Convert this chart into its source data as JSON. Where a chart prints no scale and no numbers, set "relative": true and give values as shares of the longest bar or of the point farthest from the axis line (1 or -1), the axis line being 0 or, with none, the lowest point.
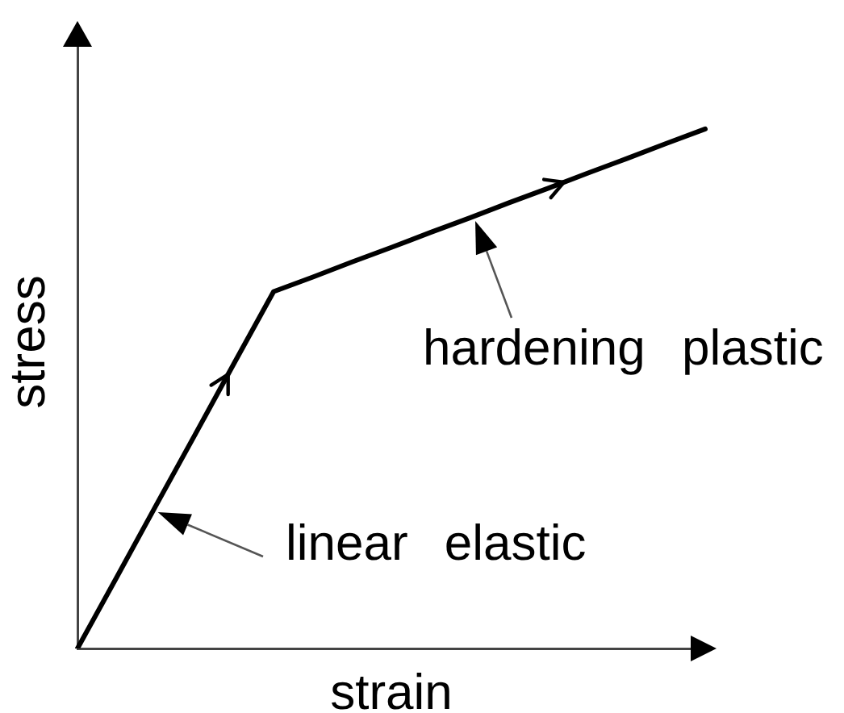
{
  "chart_data": {
    "type": "line",
    "xlabel": "strain",
    "ylabel": "stress",
    "relative": true,
    "categories": [
      null,
      null,
      null,
      null,
      null,
      null,
      null,
      null,
      null,
      null,
      null,
      null,
      null,
      null,
      null,
      null,
      null
    ],
    "series": [
      {
        "color": "#000000",
        "values": [
          0,
          0.137,
          0.275,
          0.412,
          0.55,
          0.687,
          0.715,
          0.744,
          0.772,
          0.801,
          0.829,
          0.858,
          0.886,
          0.915,
          0.943,
          0.972,
          1
        ]
      }
    ],
    "annotations": [
      "linear elastic",
      "hardening plastic"
    ]
  }
}
